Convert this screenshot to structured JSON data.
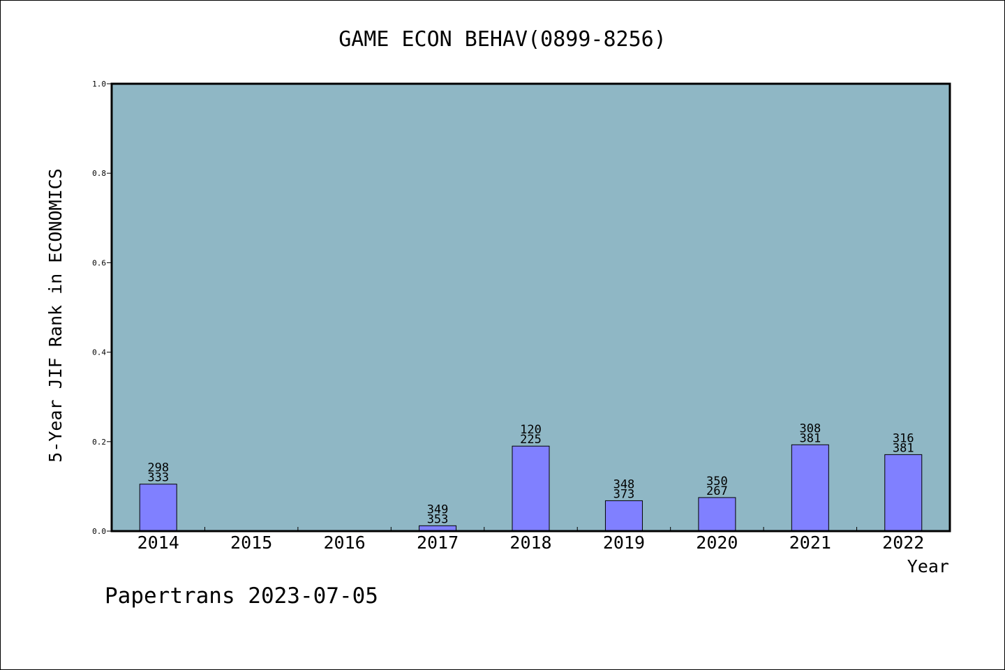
{
  "chart_data": {
    "type": "bar",
    "title": "GAME ECON BEHAV(0899-8256)",
    "xlabel": "Year",
    "ylabel": "5-Year JIF Rank in ECONOMICS",
    "ylim": [
      0,
      1.0
    ],
    "yticks": [
      "0.0",
      "0.2",
      "0.4",
      "0.6",
      "0.8",
      "1.0"
    ],
    "categories": [
      "2014",
      "2015",
      "2016",
      "2017",
      "2018",
      "2019",
      "2020",
      "2021",
      "2022"
    ],
    "values": [
      0.105,
      null,
      null,
      0.012,
      0.19,
      0.068,
      0.075,
      0.193,
      0.171
    ],
    "bar_labels": [
      [
        "298",
        "333"
      ],
      null,
      null,
      [
        "349",
        "353"
      ],
      [
        "120",
        "225"
      ],
      [
        "348",
        "373"
      ],
      [
        "350",
        "267"
      ],
      [
        "308",
        "381"
      ],
      [
        "316",
        "381"
      ]
    ],
    "grid": false,
    "colors": {
      "plot_background": "#8fb7c5",
      "bar_fill": "#8080ff",
      "bar_stroke": "#000000"
    }
  },
  "footer": "Papertrans 2023-07-05"
}
